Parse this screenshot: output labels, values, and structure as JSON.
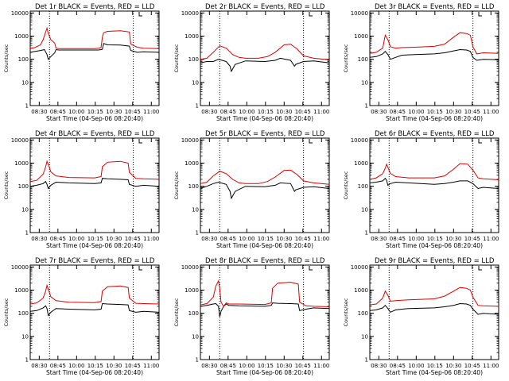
{
  "figure_note": "",
  "chart_data": [
    {
      "type": "line",
      "title": "Det 1r BLACK = Events, RED = LLD",
      "xlabel": "Start Time (04-Sep-06 08:20:40)",
      "ylabel": "Counts/sec",
      "xticks": [
        "08:30",
        "08:45",
        "10:00",
        "10:15",
        "10:30",
        "10:45",
        "11:00"
      ],
      "yticks": [
        "1",
        "10",
        "100",
        "1000",
        "10000"
      ],
      "ylim": [
        1,
        12000
      ],
      "yscale": "log",
      "vlines": [
        "08:38",
        "10:38"
      ],
      "series": [
        {
          "name": "",
          "color": "#000000",
          "x": [
            0,
            0.02,
            0.08,
            0.11,
            0.13,
            0.14,
            0.16,
            0.19,
            0.2,
            0.22,
            0.38,
            0.5,
            0.53,
            0.55,
            0.56,
            0.57,
            0.6,
            0.7,
            0.77,
            0.78,
            0.83,
            0.88,
            1
          ],
          "y": [
            200,
            210,
            240,
            260,
            160,
            100,
            130,
            190,
            260,
            250,
            250,
            250,
            250,
            260,
            270,
            480,
            420,
            410,
            370,
            240,
            200,
            210,
            200
          ]
        },
        {
          "name": "",
          "color": "#e00000",
          "x": [
            0,
            0.03,
            0.08,
            0.1,
            0.12,
            0.13,
            0.14,
            0.16,
            0.19,
            0.2,
            0.22,
            0.38,
            0.5,
            0.53,
            0.55,
            0.56,
            0.57,
            0.6,
            0.7,
            0.77,
            0.78,
            0.83,
            0.88,
            1
          ],
          "y": [
            300,
            310,
            420,
            700,
            1500,
            2200,
            1300,
            700,
            500,
            300,
            290,
            290,
            290,
            300,
            320,
            900,
            1400,
            1600,
            1700,
            1500,
            450,
            330,
            300,
            290
          ]
        }
      ]
    },
    {
      "type": "line",
      "title": "Det 2r BLACK = Events, RED = LLD",
      "xlabel": "Start Time (04-Sep-06 08:20:40)",
      "ylabel": "Counts/sec",
      "xticks": [
        "08:30",
        "08:45",
        "10:00",
        "10:15",
        "10:30",
        "10:45",
        "11:00"
      ],
      "yticks": [
        "1",
        "10",
        "100",
        "1000",
        "10000"
      ],
      "ylim": [
        1,
        12000
      ],
      "yscale": "log",
      "vlines": [
        "08:38",
        "10:38"
      ],
      "series": [
        {
          "name": "",
          "color": "#000000",
          "x": [
            0,
            0.05,
            0.1,
            0.14,
            0.2,
            0.23,
            0.24,
            0.27,
            0.35,
            0.5,
            0.58,
            0.62,
            0.7,
            0.73,
            0.74,
            0.8,
            0.88,
            1
          ],
          "y": [
            70,
            80,
            80,
            100,
            80,
            50,
            30,
            60,
            85,
            80,
            90,
            110,
            90,
            50,
            60,
            80,
            85,
            70
          ]
        },
        {
          "name": "",
          "color": "#e00000",
          "x": [
            0,
            0.05,
            0.1,
            0.15,
            0.2,
            0.25,
            0.3,
            0.35,
            0.45,
            0.52,
            0.58,
            0.65,
            0.7,
            0.75,
            0.8,
            0.88,
            1
          ],
          "y": [
            100,
            110,
            200,
            380,
            300,
            160,
            120,
            110,
            110,
            130,
            200,
            420,
            450,
            280,
            140,
            110,
            95
          ]
        }
      ]
    },
    {
      "type": "line",
      "title": "Det 3r BLACK = Events, RED = LLD",
      "xlabel": "Start Time (04-Sep-06 08:20:40)",
      "ylabel": "Counts/sec",
      "xticks": [
        "08:30",
        "08:45",
        "10:00",
        "10:15",
        "10:30",
        "10:45",
        "11:00"
      ],
      "yticks": [
        "1",
        "10",
        "100",
        "1000",
        "10000"
      ],
      "ylim": [
        1,
        12000
      ],
      "yscale": "log",
      "vlines": [
        "08:38",
        "10:38"
      ],
      "series": [
        {
          "name": "",
          "color": "#000000",
          "x": [
            0,
            0.05,
            0.1,
            0.12,
            0.14,
            0.16,
            0.2,
            0.25,
            0.35,
            0.5,
            0.58,
            0.65,
            0.7,
            0.75,
            0.78,
            0.8,
            0.83,
            0.88,
            1
          ],
          "y": [
            120,
            130,
            170,
            220,
            160,
            100,
            120,
            150,
            160,
            170,
            190,
            230,
            260,
            250,
            220,
            120,
            90,
            100,
            95
          ]
        },
        {
          "name": "",
          "color": "#e00000",
          "x": [
            0,
            0.05,
            0.1,
            0.12,
            0.14,
            0.16,
            0.2,
            0.25,
            0.35,
            0.5,
            0.58,
            0.65,
            0.7,
            0.75,
            0.78,
            0.8,
            0.83,
            0.88,
            1
          ],
          "y": [
            180,
            200,
            300,
            1100,
            700,
            350,
            300,
            320,
            330,
            360,
            450,
            900,
            1400,
            1300,
            1100,
            350,
            170,
            190,
            180
          ]
        }
      ]
    },
    {
      "type": "line",
      "title": "Det 4r BLACK = Events, RED = LLD",
      "xlabel": "Start Time (04-Sep-06 08:20:40)",
      "ylabel": "Counts/sec",
      "xticks": [
        "08:30",
        "08:45",
        "10:00",
        "10:15",
        "10:30",
        "10:45",
        "11:00"
      ],
      "yticks": [
        "1",
        "10",
        "100",
        "1000",
        "10000"
      ],
      "ylim": [
        1,
        12000
      ],
      "yscale": "log",
      "vlines": [
        "08:38",
        "10:38"
      ],
      "series": [
        {
          "name": "",
          "color": "#000000",
          "x": [
            0,
            0.05,
            0.1,
            0.12,
            0.13,
            0.14,
            0.16,
            0.2,
            0.3,
            0.5,
            0.55,
            0.56,
            0.6,
            0.7,
            0.76,
            0.77,
            0.82,
            0.88,
            1
          ],
          "y": [
            100,
            110,
            130,
            160,
            120,
            80,
            110,
            150,
            140,
            130,
            140,
            220,
            210,
            200,
            190,
            120,
            100,
            110,
            100
          ]
        },
        {
          "name": "",
          "color": "#e00000",
          "x": [
            0,
            0.05,
            0.1,
            0.12,
            0.13,
            0.14,
            0.16,
            0.2,
            0.3,
            0.5,
            0.55,
            0.56,
            0.6,
            0.7,
            0.76,
            0.77,
            0.82,
            0.88,
            1
          ],
          "y": [
            160,
            180,
            330,
            700,
            1200,
            900,
            420,
            280,
            240,
            230,
            260,
            700,
            1100,
            1200,
            1000,
            400,
            220,
            210,
            200
          ]
        }
      ]
    },
    {
      "type": "line",
      "title": "Det 5r BLACK = Events, RED = LLD",
      "xlabel": "Start Time (04-Sep-06 08:20:40)",
      "ylabel": "Counts/sec",
      "xticks": [
        "08:30",
        "08:45",
        "10:00",
        "10:15",
        "10:30",
        "10:45",
        "11:00"
      ],
      "yticks": [
        "1",
        "10",
        "100",
        "1000",
        "10000"
      ],
      "ylim": [
        1,
        12000
      ],
      "yscale": "log",
      "vlines": [
        "08:38",
        "10:38"
      ],
      "series": [
        {
          "name": "",
          "color": "#000000",
          "x": [
            0,
            0.05,
            0.1,
            0.14,
            0.2,
            0.23,
            0.24,
            0.27,
            0.35,
            0.5,
            0.58,
            0.62,
            0.7,
            0.73,
            0.74,
            0.8,
            0.88,
            1
          ],
          "y": [
            80,
            100,
            130,
            150,
            120,
            60,
            30,
            60,
            100,
            95,
            110,
            140,
            130,
            60,
            70,
            90,
            95,
            80
          ]
        },
        {
          "name": "",
          "color": "#e00000",
          "x": [
            0,
            0.05,
            0.1,
            0.15,
            0.2,
            0.25,
            0.3,
            0.35,
            0.45,
            0.52,
            0.58,
            0.65,
            0.7,
            0.75,
            0.8,
            0.88,
            1
          ],
          "y": [
            130,
            150,
            280,
            450,
            350,
            200,
            140,
            130,
            130,
            160,
            250,
            480,
            500,
            320,
            170,
            140,
            120
          ]
        }
      ]
    },
    {
      "type": "line",
      "title": "Det 6r BLACK = Events, RED = LLD",
      "xlabel": "Start Time (04-Sep-06 08:20:40)",
      "ylabel": "Counts/sec",
      "xticks": [
        "08:30",
        "08:45",
        "10:00",
        "10:15",
        "10:30",
        "10:45",
        "11:00"
      ],
      "yticks": [
        "1",
        "10",
        "100",
        "1000",
        "10000"
      ],
      "ylim": [
        1,
        12000
      ],
      "yscale": "log",
      "vlines": [
        "08:38",
        "10:38"
      ],
      "series": [
        {
          "name": "",
          "color": "#000000",
          "x": [
            0,
            0.05,
            0.1,
            0.12,
            0.13,
            0.14,
            0.16,
            0.2,
            0.3,
            0.5,
            0.58,
            0.65,
            0.7,
            0.76,
            0.8,
            0.84,
            0.88,
            1
          ],
          "y": [
            140,
            150,
            170,
            220,
            180,
            110,
            130,
            150,
            140,
            120,
            130,
            150,
            170,
            170,
            130,
            80,
            90,
            80
          ]
        },
        {
          "name": "",
          "color": "#e00000",
          "x": [
            0,
            0.05,
            0.1,
            0.12,
            0.13,
            0.14,
            0.16,
            0.2,
            0.3,
            0.5,
            0.58,
            0.65,
            0.7,
            0.76,
            0.8,
            0.84,
            0.88,
            1
          ],
          "y": [
            200,
            230,
            350,
            600,
            900,
            650,
            360,
            260,
            230,
            230,
            280,
            550,
            950,
            900,
            500,
            230,
            210,
            190
          ]
        }
      ]
    },
    {
      "type": "line",
      "title": "Det 7r BLACK = Events, RED = LLD",
      "xlabel": "Start Time (04-Sep-06 08:20:40)",
      "ylabel": "Counts/sec",
      "xticks": [
        "08:30",
        "08:45",
        "10:00",
        "10:15",
        "10:30",
        "10:45",
        "11:00"
      ],
      "yticks": [
        "1",
        "10",
        "100",
        "1000",
        "10000"
      ],
      "ylim": [
        1,
        12000
      ],
      "yscale": "log",
      "vlines": [
        "08:38",
        "10:38"
      ],
      "series": [
        {
          "name": "",
          "color": "#000000",
          "x": [
            0,
            0.05,
            0.1,
            0.12,
            0.13,
            0.14,
            0.16,
            0.2,
            0.3,
            0.5,
            0.55,
            0.56,
            0.6,
            0.7,
            0.76,
            0.77,
            0.82,
            0.88,
            1
          ],
          "y": [
            120,
            130,
            170,
            210,
            160,
            80,
            110,
            160,
            150,
            140,
            150,
            260,
            250,
            240,
            230,
            130,
            110,
            120,
            110
          ]
        },
        {
          "name": "",
          "color": "#e00000",
          "x": [
            0,
            0.05,
            0.1,
            0.12,
            0.13,
            0.14,
            0.16,
            0.2,
            0.3,
            0.5,
            0.55,
            0.56,
            0.6,
            0.7,
            0.76,
            0.77,
            0.82,
            0.88,
            1
          ],
          "y": [
            250,
            280,
            450,
            900,
            1600,
            1100,
            520,
            350,
            300,
            290,
            320,
            900,
            1400,
            1500,
            1300,
            450,
            270,
            260,
            250
          ]
        }
      ]
    },
    {
      "type": "line",
      "title": "Det 8r BLACK = Events, RED = LLD",
      "xlabel": "Start Time (04-Sep-06 08:20:40)",
      "ylabel": "Counts/sec",
      "xticks": [
        "08:30",
        "08:45",
        "10:00",
        "10:15",
        "10:30",
        "10:45",
        "11:00"
      ],
      "yticks": [
        "1",
        "10",
        "100",
        "1000",
        "10000"
      ],
      "ylim": [
        1,
        12000
      ],
      "yscale": "log",
      "vlines": [
        "08:38",
        "10:38"
      ],
      "series": [
        {
          "name": "",
          "color": "#000000",
          "x": [
            0,
            0.05,
            0.1,
            0.12,
            0.14,
            0.15,
            0.16,
            0.18,
            0.2,
            0.22,
            0.3,
            0.5,
            0.55,
            0.56,
            0.6,
            0.7,
            0.76,
            0.77,
            0.82,
            0.88,
            1
          ],
          "y": [
            200,
            220,
            250,
            260,
            200,
            70,
            120,
            200,
            250,
            220,
            210,
            200,
            220,
            280,
            270,
            260,
            250,
            130,
            150,
            170,
            160
          ]
        },
        {
          "name": "",
          "color": "#e00000",
          "x": [
            0,
            0.05,
            0.1,
            0.12,
            0.14,
            0.15,
            0.16,
            0.18,
            0.2,
            0.22,
            0.3,
            0.5,
            0.55,
            0.56,
            0.6,
            0.7,
            0.76,
            0.77,
            0.82,
            0.88,
            1
          ],
          "y": [
            230,
            260,
            500,
            1500,
            2500,
            1200,
            300,
            200,
            280,
            250,
            250,
            240,
            280,
            1200,
            2000,
            2200,
            1800,
            300,
            210,
            200,
            190
          ]
        }
      ]
    },
    {
      "type": "line",
      "title": "Det 9r BLACK = Events, RED = LLD",
      "xlabel": "Start Time (04-Sep-06 08:20:40)",
      "ylabel": "Counts/sec",
      "xticks": [
        "08:30",
        "08:45",
        "10:00",
        "10:15",
        "10:30",
        "10:45",
        "11:00"
      ],
      "yticks": [
        "1",
        "10",
        "100",
        "1000",
        "10000"
      ],
      "ylim": [
        1,
        12000
      ],
      "yscale": "log",
      "vlines": [
        "08:38",
        "10:38"
      ],
      "series": [
        {
          "name": "",
          "color": "#000000",
          "x": [
            0,
            0.05,
            0.1,
            0.12,
            0.14,
            0.16,
            0.2,
            0.3,
            0.5,
            0.58,
            0.65,
            0.7,
            0.75,
            0.78,
            0.8,
            0.84,
            0.88,
            1
          ],
          "y": [
            130,
            140,
            170,
            220,
            160,
            110,
            140,
            160,
            170,
            190,
            220,
            260,
            250,
            220,
            150,
            90,
            100,
            90
          ]
        },
        {
          "name": "",
          "color": "#e00000",
          "x": [
            0,
            0.05,
            0.1,
            0.12,
            0.14,
            0.16,
            0.2,
            0.3,
            0.5,
            0.58,
            0.65,
            0.7,
            0.75,
            0.78,
            0.8,
            0.84,
            0.88,
            1
          ],
          "y": [
            230,
            250,
            450,
            900,
            600,
            330,
            350,
            380,
            420,
            550,
            900,
            1300,
            1200,
            1000,
            500,
            220,
            210,
            200
          ]
        }
      ]
    }
  ]
}
